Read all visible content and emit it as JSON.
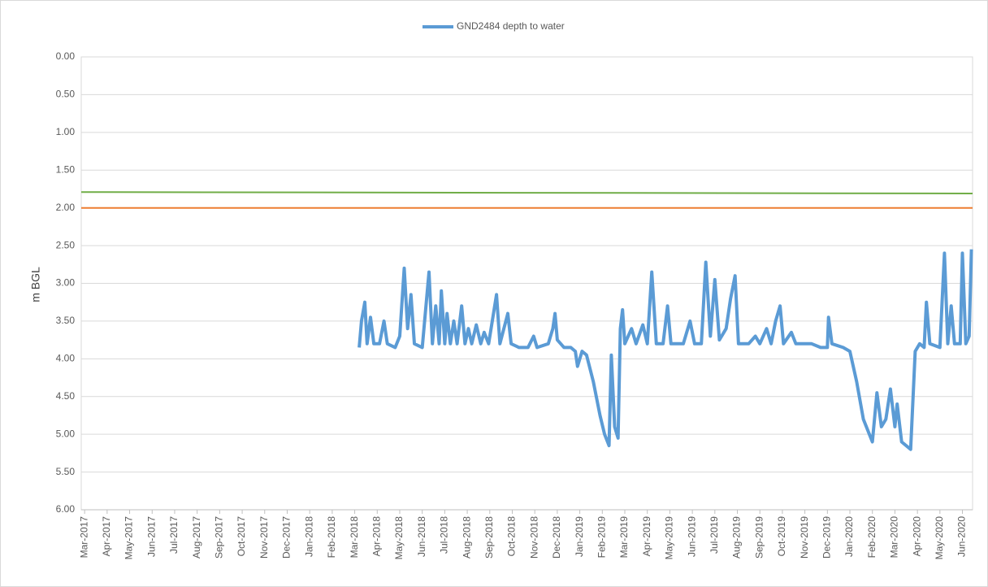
{
  "chart_data": {
    "type": "line",
    "legend": "top",
    "grid": true,
    "y_inverted": true,
    "y_label": "m BGL",
    "ylim": [
      0,
      6
    ],
    "yticks": [
      {
        "value": 0,
        "label": "0.00"
      },
      {
        "value": 0.5,
        "label": "0.50"
      },
      {
        "value": 1,
        "label": "1.00"
      },
      {
        "value": 1.5,
        "label": "1.50"
      },
      {
        "value": 2,
        "label": "2.00"
      },
      {
        "value": 2.5,
        "label": "2.50"
      },
      {
        "value": 3,
        "label": "3.00"
      },
      {
        "value": 3.5,
        "label": "3.50"
      },
      {
        "value": 4,
        "label": "4.00"
      },
      {
        "value": 4.5,
        "label": "4.50"
      },
      {
        "value": 5,
        "label": "5.00"
      },
      {
        "value": 5.5,
        "label": "5.50"
      },
      {
        "value": 6,
        "label": "6.00"
      }
    ],
    "xlim": [
      -0.15,
      39.45
    ],
    "xticks": [
      {
        "value": 0,
        "label": "Mar-2017"
      },
      {
        "value": 1,
        "label": "Apr-2017"
      },
      {
        "value": 2,
        "label": "May-2017"
      },
      {
        "value": 3,
        "label": "Jun-2017"
      },
      {
        "value": 4,
        "label": "Jul-2017"
      },
      {
        "value": 5,
        "label": "Aug-2017"
      },
      {
        "value": 6,
        "label": "Sep-2017"
      },
      {
        "value": 7,
        "label": "Oct-2017"
      },
      {
        "value": 8,
        "label": "Nov-2017"
      },
      {
        "value": 9,
        "label": "Dec-2017"
      },
      {
        "value": 10,
        "label": "Jan-2018"
      },
      {
        "value": 11,
        "label": "Feb-2018"
      },
      {
        "value": 12,
        "label": "Mar-2018"
      },
      {
        "value": 13,
        "label": "Apr-2018"
      },
      {
        "value": 14,
        "label": "May-2018"
      },
      {
        "value": 15,
        "label": "Jun-2018"
      },
      {
        "value": 16,
        "label": "Jul-2018"
      },
      {
        "value": 17,
        "label": "Aug-2018"
      },
      {
        "value": 18,
        "label": "Sep-2018"
      },
      {
        "value": 19,
        "label": "Oct-2018"
      },
      {
        "value": 20,
        "label": "Nov-2018"
      },
      {
        "value": 21,
        "label": "Dec-2018"
      },
      {
        "value": 22,
        "label": "Jan-2019"
      },
      {
        "value": 23,
        "label": "Feb-2019"
      },
      {
        "value": 24,
        "label": "Mar-2019"
      },
      {
        "value": 25,
        "label": "Apr-2019"
      },
      {
        "value": 26,
        "label": "May-2019"
      },
      {
        "value": 27,
        "label": "Jun-2019"
      },
      {
        "value": 28,
        "label": "Jul-2019"
      },
      {
        "value": 29,
        "label": "Aug-2019"
      },
      {
        "value": 30,
        "label": "Sep-2019"
      },
      {
        "value": 31,
        "label": "Oct-2019"
      },
      {
        "value": 32,
        "label": "Nov-2019"
      },
      {
        "value": 33,
        "label": "Dec-2019"
      },
      {
        "value": 34,
        "label": "Jan-2020"
      },
      {
        "value": 35,
        "label": "Feb-2020"
      },
      {
        "value": 36,
        "label": "Mar-2020"
      },
      {
        "value": 37,
        "label": "Apr-2020"
      },
      {
        "value": 38,
        "label": "May-2020"
      },
      {
        "value": 39,
        "label": "Jun-2020"
      }
    ],
    "series": [
      {
        "color": "#70ad47",
        "x": [
          -0.15,
          39.45
        ],
        "values": [
          1.79,
          1.81
        ]
      },
      {
        "color": "#ed7d31",
        "x": [
          -0.15,
          39.45
        ],
        "values": [
          2.0,
          2.0
        ]
      },
      {
        "name": "GND2484 depth to water",
        "color": "#5b9bd5",
        "x": [
          12.2,
          12.3,
          12.45,
          12.55,
          12.7,
          12.85,
          13.1,
          13.3,
          13.45,
          13.8,
          14.0,
          14.2,
          14.35,
          14.5,
          14.65,
          15.0,
          15.3,
          15.45,
          15.6,
          15.75,
          15.85,
          16.0,
          16.1,
          16.25,
          16.4,
          16.55,
          16.75,
          16.9,
          17.05,
          17.2,
          17.4,
          17.6,
          17.75,
          17.95,
          18.3,
          18.45,
          18.8,
          18.95,
          19.3,
          19.7,
          19.95,
          20.1,
          20.6,
          20.8,
          20.9,
          21.0,
          21.3,
          21.6,
          21.8,
          21.9,
          22.1,
          22.3,
          22.6,
          22.9,
          23.1,
          23.3,
          23.4,
          23.55,
          23.7,
          23.8,
          23.9,
          24.0,
          24.3,
          24.5,
          24.8,
          25.0,
          25.2,
          25.4,
          25.7,
          25.9,
          26.05,
          26.6,
          26.9,
          27.1,
          27.4,
          27.6,
          27.8,
          28.0,
          28.2,
          28.5,
          28.7,
          28.9,
          29.05,
          29.5,
          29.8,
          30.0,
          30.3,
          30.5,
          30.7,
          30.9,
          31.05,
          31.4,
          31.6,
          32.3,
          32.7,
          33.0,
          33.05,
          33.2,
          33.7,
          34.0,
          34.3,
          34.6,
          35.0,
          35.2,
          35.4,
          35.6,
          35.8,
          36.0,
          36.1,
          36.3,
          36.7,
          36.9,
          37.1,
          37.3,
          37.4,
          37.55,
          38.0,
          38.2,
          38.35,
          38.5,
          38.65,
          38.9,
          39.0,
          39.15,
          39.3,
          39.4
        ],
        "values": [
          3.85,
          3.5,
          3.25,
          3.8,
          3.45,
          3.8,
          3.8,
          3.5,
          3.8,
          3.85,
          3.7,
          2.8,
          3.6,
          3.15,
          3.8,
          3.85,
          2.85,
          3.8,
          3.3,
          3.8,
          3.1,
          3.8,
          3.4,
          3.8,
          3.5,
          3.8,
          3.3,
          3.8,
          3.6,
          3.8,
          3.55,
          3.8,
          3.65,
          3.8,
          3.15,
          3.8,
          3.4,
          3.8,
          3.85,
          3.85,
          3.7,
          3.85,
          3.8,
          3.6,
          3.4,
          3.75,
          3.85,
          3.85,
          3.9,
          4.1,
          3.9,
          3.95,
          4.3,
          4.75,
          5.0,
          5.15,
          3.95,
          4.9,
          5.05,
          3.6,
          3.35,
          3.8,
          3.6,
          3.8,
          3.55,
          3.8,
          2.85,
          3.8,
          3.8,
          3.3,
          3.8,
          3.8,
          3.5,
          3.8,
          3.8,
          2.72,
          3.7,
          2.95,
          3.75,
          3.6,
          3.2,
          2.9,
          3.8,
          3.8,
          3.7,
          3.8,
          3.6,
          3.8,
          3.5,
          3.3,
          3.8,
          3.65,
          3.8,
          3.8,
          3.85,
          3.85,
          3.45,
          3.8,
          3.85,
          3.9,
          4.3,
          4.8,
          5.1,
          4.45,
          4.9,
          4.8,
          4.4,
          4.9,
          4.6,
          5.1,
          5.2,
          3.9,
          3.8,
          3.85,
          3.25,
          3.8,
          3.85,
          2.6,
          3.8,
          3.3,
          3.8,
          3.8,
          2.6,
          3.8,
          3.7,
          2.55
        ]
      }
    ]
  }
}
